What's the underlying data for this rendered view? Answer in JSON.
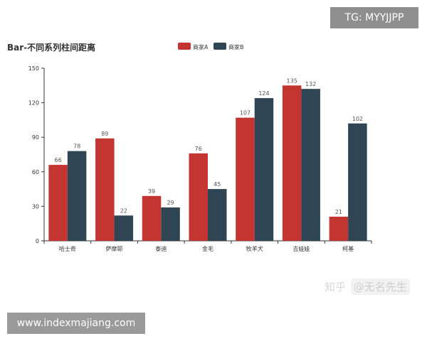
{
  "chart_data": {
    "type": "bar",
    "title": "Bar-不同系列柱间距离",
    "categories": [
      "哈士奇",
      "萨摩耶",
      "泰迪",
      "金毛",
      "牧羊犬",
      "吉娃娃",
      "柯基"
    ],
    "series": [
      {
        "name": "商家A",
        "color": "#c23531",
        "values": [
          66,
          89,
          39,
          76,
          107,
          135,
          21
        ]
      },
      {
        "name": "商家B",
        "color": "#2f4554",
        "values": [
          78,
          22,
          29,
          45,
          124,
          132,
          102
        ]
      }
    ],
    "ylim": [
      0,
      150
    ],
    "yticks": [
      0,
      30,
      60,
      90,
      120,
      150
    ],
    "xlabel": "",
    "ylabel": "",
    "grid": false,
    "legend_position": "top-center",
    "data_labels": true
  },
  "watermarks": {
    "tg": "TG: MYYJJPP",
    "site": "www.indexmajiang.com",
    "zhihu_prefix": "知乎 ",
    "zhihu_author": "@无名先生"
  }
}
